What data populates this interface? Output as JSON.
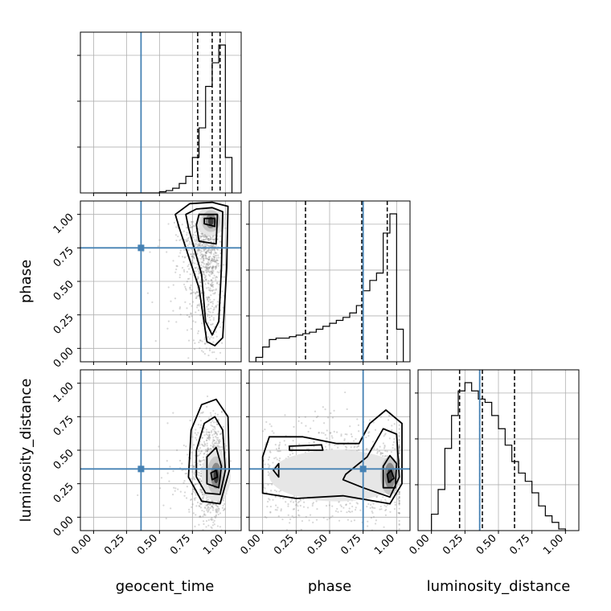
{
  "chart_data": {
    "type": "corner",
    "parameters": [
      "geocent_time",
      "phase",
      "luminosity_distance"
    ],
    "axis_labels": [
      "geocent_time",
      "phase",
      "luminosity_distance"
    ],
    "tick_values": [
      0.0,
      0.25,
      0.5,
      0.75,
      1.0
    ],
    "tick_labels": [
      "0.00",
      "0.25",
      "0.50",
      "0.75",
      "1.00"
    ],
    "ranges": [
      [
        -0.1,
        1.12
      ],
      [
        -0.1,
        1.1
      ],
      [
        -0.1,
        1.1
      ]
    ],
    "truths": [
      0.36,
      0.75,
      0.36
    ],
    "truth_color": "#4682b4",
    "grid": true,
    "histograms": [
      {
        "param": "geocent_time",
        "edges": [
          0.0,
          0.05,
          0.1,
          0.15,
          0.2,
          0.25,
          0.3,
          0.35,
          0.4,
          0.45,
          0.5,
          0.55,
          0.6,
          0.65,
          0.7,
          0.75,
          0.8,
          0.85,
          0.9,
          0.95,
          1.0,
          1.05
        ],
        "counts": [
          0,
          0,
          0,
          0,
          0,
          0,
          0,
          0,
          0,
          0,
          1,
          2,
          4,
          8,
          14,
          30,
          55,
          90,
          110,
          125,
          30
        ],
        "quantiles": [
          0.79,
          0.9,
          0.96
        ]
      },
      {
        "param": "phase",
        "edges": [
          -0.05,
          0.0,
          0.05,
          0.1,
          0.15,
          0.2,
          0.25,
          0.3,
          0.35,
          0.4,
          0.45,
          0.5,
          0.55,
          0.6,
          0.65,
          0.7,
          0.75,
          0.8,
          0.85,
          0.9,
          0.95,
          1.0,
          1.05
        ],
        "counts": [
          3,
          10,
          15,
          16,
          16,
          17,
          18,
          19,
          20,
          22,
          24,
          26,
          28,
          30,
          33,
          38,
          48,
          55,
          60,
          87,
          100,
          22
        ],
        "quantiles": [
          0.32,
          0.74,
          0.93
        ]
      },
      {
        "param": "luminosity_distance",
        "edges": [
          0.0,
          0.05,
          0.1,
          0.15,
          0.2,
          0.25,
          0.3,
          0.35,
          0.4,
          0.45,
          0.5,
          0.55,
          0.6,
          0.65,
          0.7,
          0.75,
          0.8,
          0.85,
          0.9,
          0.95,
          1.0
        ],
        "counts": [
          10,
          25,
          50,
          70,
          85,
          90,
          85,
          80,
          78,
          70,
          62,
          52,
          42,
          35,
          30,
          23,
          15,
          9,
          5,
          1
        ],
        "quantiles": [
          0.21,
          0.38,
          0.62
        ]
      }
    ],
    "panels_2d": [
      {
        "x": "geocent_time",
        "y": "phase",
        "contours": [
          [
            [
              0.84,
              0.93
            ],
            [
              0.92,
              0.91
            ],
            [
              0.92,
              0.97
            ],
            [
              0.84,
              0.97
            ]
          ],
          [
            [
              0.8,
              0.8
            ],
            [
              0.93,
              0.78
            ],
            [
              0.94,
              1.0
            ],
            [
              0.8,
              1.0
            ],
            [
              0.78,
              0.92
            ]
          ],
          [
            [
              0.72,
              0.9
            ],
            [
              0.82,
              0.55
            ],
            [
              0.85,
              0.2
            ],
            [
              0.9,
              0.1
            ],
            [
              0.95,
              0.2
            ],
            [
              0.97,
              0.6
            ],
            [
              0.98,
              1.02
            ],
            [
              0.9,
              1.05
            ],
            [
              0.78,
              1.04
            ],
            [
              0.7,
              1.0
            ]
          ],
          [
            [
              0.65,
              0.9
            ],
            [
              0.8,
              0.45
            ],
            [
              0.86,
              0.05
            ],
            [
              0.92,
              0.02
            ],
            [
              0.98,
              0.08
            ],
            [
              1.01,
              0.6
            ],
            [
              1.02,
              1.06
            ],
            [
              0.9,
              1.09
            ],
            [
              0.73,
              1.08
            ],
            [
              0.62,
              1.0
            ]
          ]
        ],
        "density_peak": [
          0.89,
          0.95
        ]
      },
      {
        "x": "geocent_time",
        "y": "luminosity_distance",
        "contours": [
          [
            [
              0.9,
              0.28
            ],
            [
              0.94,
              0.3
            ],
            [
              0.93,
              0.35
            ],
            [
              0.89,
              0.33
            ]
          ],
          [
            [
              0.86,
              0.25
            ],
            [
              0.95,
              0.22
            ],
            [
              0.97,
              0.38
            ],
            [
              0.93,
              0.52
            ],
            [
              0.86,
              0.45
            ]
          ],
          [
            [
              0.78,
              0.3
            ],
            [
              0.85,
              0.18
            ],
            [
              0.96,
              0.17
            ],
            [
              1.0,
              0.35
            ],
            [
              0.98,
              0.65
            ],
            [
              0.92,
              0.75
            ],
            [
              0.84,
              0.7
            ],
            [
              0.78,
              0.5
            ]
          ],
          [
            [
              0.72,
              0.3
            ],
            [
              0.82,
              0.12
            ],
            [
              0.96,
              0.1
            ],
            [
              1.03,
              0.35
            ],
            [
              1.02,
              0.75
            ],
            [
              0.93,
              0.88
            ],
            [
              0.82,
              0.84
            ],
            [
              0.74,
              0.65
            ]
          ]
        ],
        "density_peak": [
          0.93,
          0.31
        ]
      },
      {
        "x": "phase",
        "y": "luminosity_distance",
        "contours": [
          [
            [
              0.94,
              0.26
            ],
            [
              0.98,
              0.29
            ],
            [
              0.96,
              0.35
            ],
            [
              0.93,
              0.32
            ]
          ],
          [
            [
              0.9,
              0.22
            ],
            [
              0.99,
              0.22
            ],
            [
              1.0,
              0.4
            ],
            [
              0.95,
              0.46
            ],
            [
              0.9,
              0.38
            ]
          ],
          [
            [
              0.6,
              0.28
            ],
            [
              0.75,
              0.22
            ],
            [
              0.95,
              0.15
            ],
            [
              1.02,
              0.3
            ],
            [
              1.0,
              0.62
            ],
            [
              0.9,
              0.66
            ],
            [
              0.78,
              0.45
            ],
            [
              0.62,
              0.32
            ]
          ],
          [
            [
              0.0,
              0.18
            ],
            [
              0.25,
              0.14
            ],
            [
              0.6,
              0.16
            ],
            [
              0.95,
              0.1
            ],
            [
              1.04,
              0.25
            ],
            [
              1.04,
              0.7
            ],
            [
              0.92,
              0.8
            ],
            [
              0.8,
              0.7
            ],
            [
              0.72,
              0.55
            ],
            [
              0.55,
              0.55
            ],
            [
              0.3,
              0.6
            ],
            [
              0.05,
              0.6
            ],
            [
              0.0,
              0.45
            ]
          ],
          [
            [
              0.2,
              0.5
            ],
            [
              0.45,
              0.5
            ],
            [
              0.44,
              0.54
            ],
            [
              0.2,
              0.53
            ]
          ],
          [
            [
              0.08,
              0.35
            ],
            [
              0.12,
              0.3
            ],
            [
              0.12,
              0.4
            ]
          ]
        ],
        "density_peak": [
          0.95,
          0.31
        ]
      }
    ]
  }
}
